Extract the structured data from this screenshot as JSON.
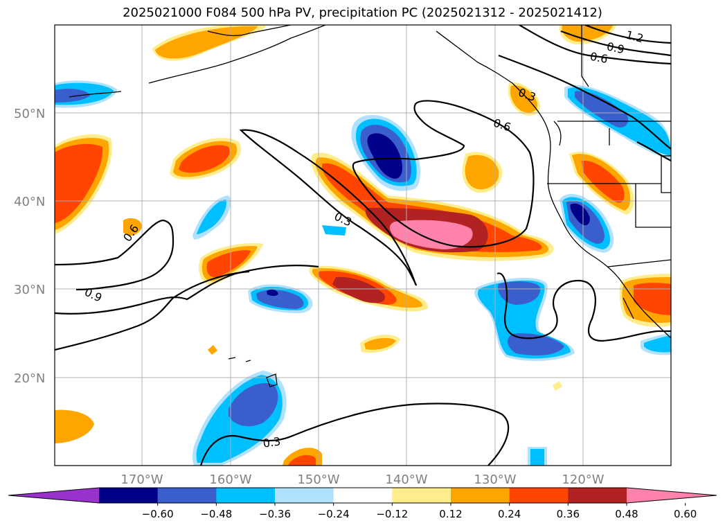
{
  "title": "2025021000 F084 500 hPa PV, precipitation PC (2025021312 - 2025021412)",
  "lat_labels": [
    "50°N",
    "40°N",
    "30°N",
    "20°N"
  ],
  "lon_labels": [
    "170°W",
    "160°W",
    "150°W",
    "140°W",
    "130°W",
    "120°W"
  ],
  "contour_labels": [
    "1.2",
    "0.9",
    "0.6",
    "0.3",
    "0.6",
    "0.6",
    "0.9",
    "0.3",
    "0.3"
  ],
  "colorbar": {
    "ticks": [
      "−0.60",
      "−0.48",
      "−0.36",
      "−0.24",
      "−0.12",
      "0.12",
      "0.24",
      "0.36",
      "0.48",
      "0.60"
    ],
    "colors": [
      "#9932cc",
      "#00008b",
      "#3a5fcd",
      "#00bfff",
      "#b0e2ff",
      "#ffffff",
      "#ffec8b",
      "#ffa500",
      "#ff4500",
      "#b22222",
      "#ff82ab"
    ]
  }
}
